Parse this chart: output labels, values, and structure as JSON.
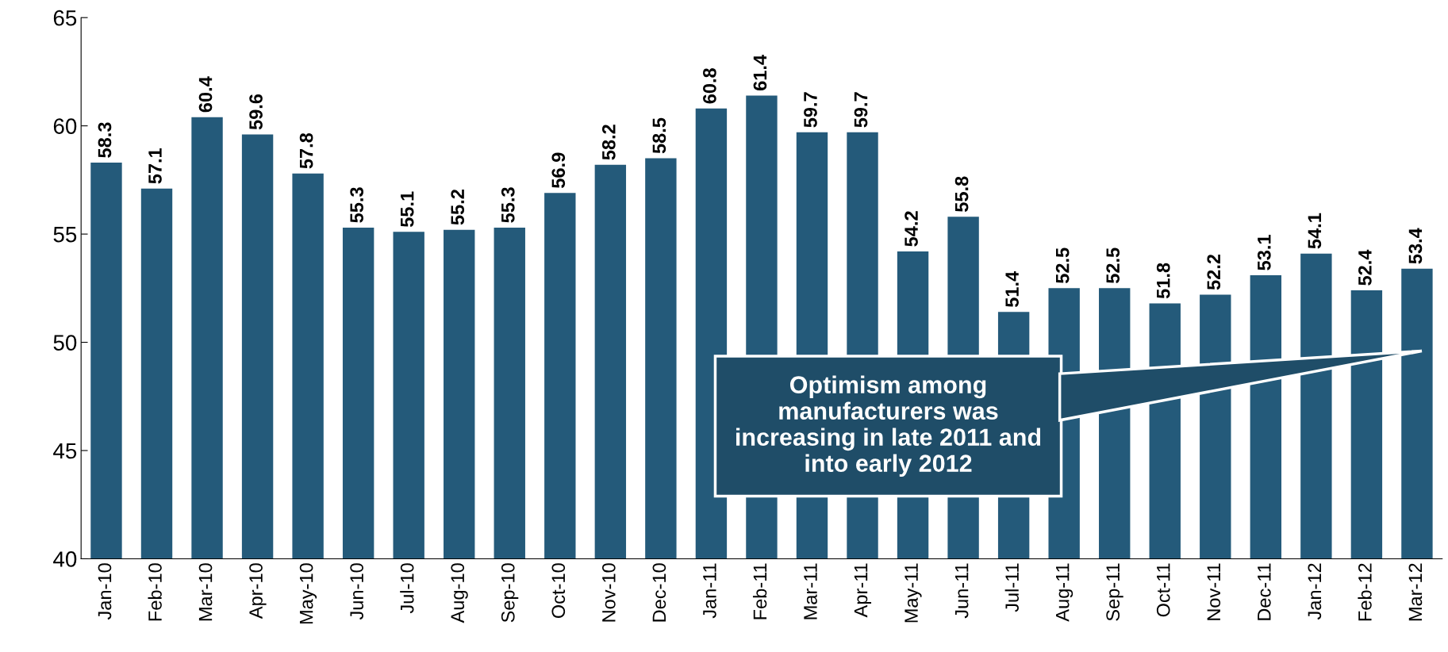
{
  "chart_data": {
    "type": "bar",
    "categories": [
      "Jan-10",
      "Feb-10",
      "Mar-10",
      "Apr-10",
      "May-10",
      "Jun-10",
      "Jul-10",
      "Aug-10",
      "Sep-10",
      "Oct-10",
      "Nov-10",
      "Dec-10",
      "Jan-11",
      "Feb-11",
      "Mar-11",
      "Apr-11",
      "May-11",
      "Jun-11",
      "Jul-11",
      "Aug-11",
      "Sep-11",
      "Oct-11",
      "Nov-11",
      "Dec-11",
      "Jan-12",
      "Feb-12",
      "Mar-12"
    ],
    "values": [
      58.3,
      57.1,
      60.4,
      59.6,
      57.8,
      55.3,
      55.1,
      55.2,
      55.3,
      56.9,
      58.2,
      58.5,
      60.8,
      61.4,
      59.7,
      59.7,
      54.2,
      55.8,
      51.4,
      52.5,
      52.5,
      51.8,
      52.2,
      53.1,
      54.1,
      52.4,
      53.4
    ],
    "color": "#245a7a",
    "ylim": [
      40,
      65
    ],
    "yticks": [
      40,
      45,
      50,
      55,
      60,
      65
    ],
    "data_labels": true,
    "grid": false,
    "legend": false,
    "annotations": [
      "Optimism among\nmanufacturers was\nincreasing in late 2011 and\ninto early 2012"
    ]
  }
}
